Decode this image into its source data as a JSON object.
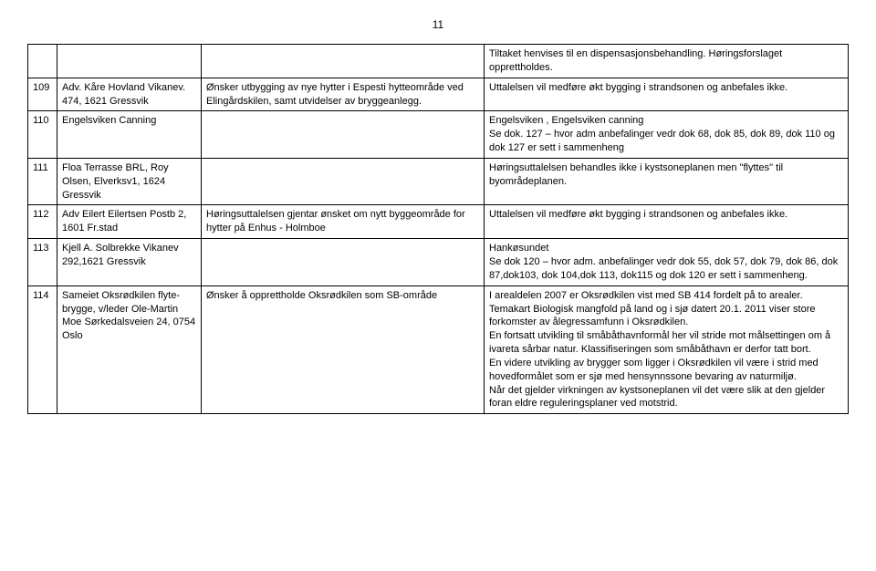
{
  "page_number": "11",
  "table": {
    "columns": [
      "num",
      "party",
      "comment",
      "response"
    ],
    "rows": [
      {
        "num": "",
        "party": "",
        "comment": "",
        "response": "Tiltaket henvises til en dispensasjonsbehandling. Høringsforslaget opprettholdes."
      },
      {
        "num": "109",
        "party": "Adv. Kåre Hovland Vikanev. 474, 1621 Gressvik",
        "comment": "Ønsker utbygging av nye hytter i Espesti hytteområde ved Elingårdskilen, samt utvidelser av bryggeanlegg.",
        "response": "Uttalelsen vil medføre økt bygging i strandsonen og anbefales ikke."
      },
      {
        "num": "110",
        "party": "Engelsviken Canning",
        "comment": "",
        "response": "Engelsviken , Engelsviken canning\nSe dok. 127 – hvor adm anbefalinger  vedr dok 68, dok 85, dok 89,  dok 110 og dok 127 er sett i sammenheng"
      },
      {
        "num": "111",
        "party": "Floa Terrasse BRL, Roy Olsen, Elverksv1, 1624 Gressvik",
        "comment": "",
        "response": "Høringsuttalelsen  behandles ikke i kystsoneplanen men \"flyttes\"  til byområdeplanen."
      },
      {
        "num": "112",
        "party": "Adv Eilert Eilertsen Postb 2, 1601 Fr.stad",
        "comment": "Høringsuttalelsen gjentar ønsket om nytt byggeområde for hytter på Enhus - Holmboe",
        "response": "Uttalelsen vil medføre økt bygging i strandsonen og anbefales ikke."
      },
      {
        "num": "113",
        "party": "Kjell A. Solbrekke Vikanev 292,1621 Gressvik",
        "comment": "",
        "response": "Hankøsundet\nSe dok 120 – hvor adm. anbefalinger vedr dok 55, dok 57, dok 79, dok 86, dok 87,dok103, dok 104,dok 113, dok115 og dok 120 er sett i sammenheng."
      },
      {
        "num": "114",
        "party": "Sameiet Oksrødkilen flyte-brygge, v/leder Ole-Martin Moe Sørkedalsveien 24, 0754 Oslo",
        "comment": "Ønsker å opprettholde Oksrødkilen som SB-område",
        "response": "I arealdelen 2007 er Oksrødkilen vist med SB 414 fordelt på to arealer.\nTemakart Biologisk mangfold på land og i sjø datert 20.1. 2011 viser store forkomster av ålegressamfunn i Oksrødkilen.\nEn fortsatt utvikling til småbåthavnformål her vil stride mot målsettingen om å ivareta sårbar natur. Klassifiseringen som småbåthavn  er derfor tatt bort.\nEn videre utvikling av brygger som ligger i Oksrødkilen vil være i strid med hovedformålet som er sjø med hensynnssone bevaring av naturmiljø.\nNår det gjelder virkningen av kystsoneplanen vil det være slik at den gjelder foran eldre reguleringsplaner ved motstrid."
      }
    ]
  }
}
